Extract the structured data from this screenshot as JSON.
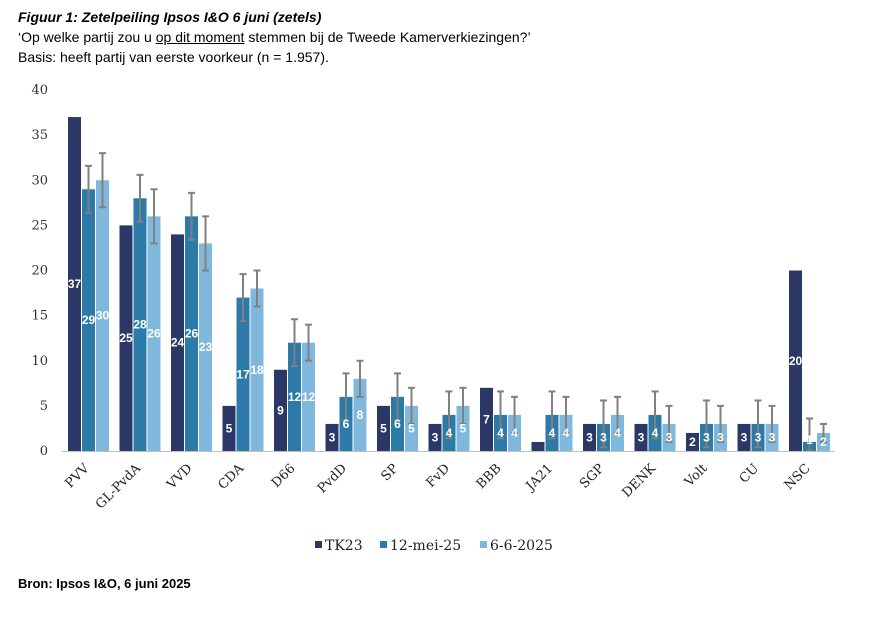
{
  "header": {
    "title": "Figuur 1: Zetelpeiling Ipsos I&O 6 juni (zetels)",
    "question_pre": "‘Op welke partij zou u ",
    "question_emph": "op dit moment",
    "question_post": " stemmen bij de Tweede Kamerverkiezingen?’",
    "basis": "Basis: heeft partij van eerste voorkeur (n = 1.957)."
  },
  "source": "Bron: Ipsos I&O, 6 juni 2025",
  "colors": {
    "TK23": "#2b3766",
    "12-mei-25": "#2c7aa8",
    "6-6-2025": "#7fb8dc",
    "error_bar": "#808080"
  },
  "chart_data": {
    "type": "bar",
    "categories": [
      "PVV",
      "GL-PvdA",
      "VVD",
      "CDA",
      "D66",
      "PvdD",
      "SP",
      "FvD",
      "BBB",
      "JA21",
      "SGP",
      "DENK",
      "Volt",
      "CU",
      "NSC"
    ],
    "series": [
      {
        "name": "TK23",
        "values": [
          37,
          25,
          24,
          5,
          9,
          3,
          5,
          3,
          7,
          1,
          3,
          3,
          2,
          3,
          20
        ],
        "labels": [
          "37",
          "25",
          "24",
          "5",
          "9",
          "3",
          "5",
          "3",
          "7",
          "",
          "3",
          "3",
          "2",
          "3",
          "20"
        ]
      },
      {
        "name": "12-mei-25",
        "values": [
          29,
          28,
          26,
          17,
          12,
          6,
          6,
          4,
          4,
          4,
          3,
          4,
          3,
          3,
          1
        ],
        "labels": [
          "29",
          "28",
          "26",
          "17",
          "12",
          "6",
          "6",
          "4",
          "4",
          "4",
          "3",
          "4",
          "3",
          "3",
          "1"
        ]
      },
      {
        "name": "6-6-2025",
        "values": [
          30,
          26,
          23,
          18,
          12,
          8,
          5,
          5,
          4,
          4,
          4,
          3,
          3,
          3,
          2
        ],
        "labels": [
          "30",
          "26",
          "23",
          "18",
          "12",
          "8",
          "5",
          "5",
          "4",
          "4",
          "4",
          "3",
          "3",
          "3",
          "2"
        ]
      }
    ],
    "error_bars": {
      "12-mei-25": [
        [
          26.4,
          31.6
        ],
        [
          25.4,
          30.6
        ],
        [
          23.4,
          28.6
        ],
        [
          14.4,
          19.6
        ],
        [
          9.4,
          14.6
        ],
        [
          3.4,
          8.6
        ],
        [
          3.4,
          8.6
        ],
        [
          1.4,
          6.6
        ],
        [
          1.4,
          6.6
        ],
        [
          1.4,
          6.6
        ],
        [
          0.4,
          5.6
        ],
        [
          1.4,
          6.6
        ],
        [
          0.4,
          5.6
        ],
        [
          0.4,
          5.6
        ],
        [
          0,
          3.6
        ]
      ],
      "6-6-2025": [
        [
          27,
          33
        ],
        [
          23,
          29
        ],
        [
          20,
          26
        ],
        [
          16,
          20
        ],
        [
          10,
          14
        ],
        [
          6,
          10
        ],
        [
          3,
          7
        ],
        [
          3,
          7
        ],
        [
          2,
          6
        ],
        [
          2,
          6
        ],
        [
          2,
          6
        ],
        [
          1,
          5
        ],
        [
          1,
          5
        ],
        [
          1,
          5
        ],
        [
          1,
          3
        ]
      ]
    },
    "ylim": [
      0,
      40
    ],
    "yticks": [
      "0",
      "5",
      "10",
      "15",
      "20",
      "25",
      "30",
      "35",
      "40"
    ],
    "grid": false,
    "legend_position": "bottom"
  }
}
